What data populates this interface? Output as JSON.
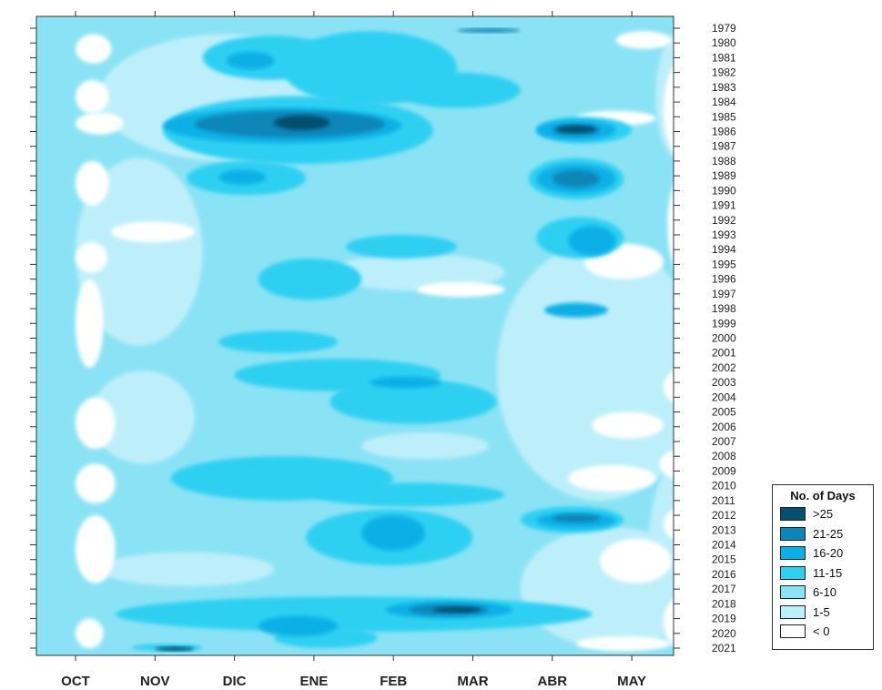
{
  "chart_data": {
    "type": "heatmap",
    "title": "",
    "xlabel": "",
    "ylabel": "",
    "months": [
      "OCT",
      "NOV",
      "DIC",
      "ENE",
      "FEB",
      "MAR",
      "ABR",
      "MAY"
    ],
    "years": [
      "1979",
      "1980",
      "1981",
      "1982",
      "1983",
      "1984",
      "1985",
      "1986",
      "1987",
      "1988",
      "1989",
      "1990",
      "1991",
      "1992",
      "1993",
      "1994",
      "1995",
      "1996",
      "1997",
      "1998",
      "1999",
      "2000",
      "2001",
      "2002",
      "2003",
      "2004",
      "2005",
      "2006",
      "2007",
      "2008",
      "2009",
      "2010",
      "2011",
      "2012",
      "2013",
      "2014",
      "2015",
      "2016",
      "2017",
      "2018",
      "2019",
      "2020",
      "2021"
    ],
    "legend": {
      "title": "No. of Days",
      "classes": [
        {
          "label": ">25",
          "color": "#04506e"
        },
        {
          "label": "21-25",
          "color": "#0a86b8"
        },
        {
          "label": "16-20",
          "color": "#08b0e6"
        },
        {
          "label": "11-15",
          "color": "#2fd0f2"
        },
        {
          "label": "6-10",
          "color": "#8ae3f4"
        },
        {
          "label": "1-5",
          "color": "#bdeffa"
        },
        {
          "label": "< 0",
          "color": "#ffffff"
        }
      ]
    },
    "background_class": "6-10",
    "regions": [
      {
        "c": "1-5",
        "m": [
          0.3,
          3.5
        ],
        "y": [
          1979.4,
          1988.0
        ]
      },
      {
        "c": "1-5",
        "m": [
          0.0,
          1.6
        ],
        "y": [
          1987.8,
          2000.5
        ]
      },
      {
        "c": "1-5",
        "m": [
          0.2,
          1.5
        ],
        "y": [
          2002.2,
          2008.5
        ]
      },
      {
        "c": "1-5",
        "m": [
          5.3,
          7.9
        ],
        "y": [
          1993.5,
          2011.0
        ]
      },
      {
        "c": "1-5",
        "m": [
          5.6,
          7.9
        ],
        "y": [
          2012.8,
          2021.0
        ]
      },
      {
        "c": "1-5",
        "m": [
          3.2,
          5.4
        ],
        "y": [
          1994.3,
          1996.8
        ]
      },
      {
        "c": "1-5",
        "m": [
          0.3,
          2.5
        ],
        "y": [
          2014.5,
          2016.8
        ]
      },
      {
        "c": "1-5",
        "m": [
          3.6,
          5.2
        ],
        "y": [
          2006.4,
          2008.2
        ]
      },
      {
        "c": "1-5",
        "m": [
          7.3,
          7.95
        ],
        "y": [
          1979.2,
          1988.0
        ]
      },
      {
        "c": "1-5",
        "m": [
          7.2,
          7.95
        ],
        "y": [
          2008.5,
          2021.0
        ]
      },
      {
        "c": "< 0",
        "m": [
          0.0,
          0.45
        ],
        "y": [
          1979.4,
          1981.4
        ]
      },
      {
        "c": "< 0",
        "m": [
          0.0,
          0.42
        ],
        "y": [
          1982.5,
          1984.8
        ]
      },
      {
        "c": "< 0",
        "m": [
          0.0,
          0.6
        ],
        "y": [
          1984.7,
          1986.2
        ]
      },
      {
        "c": "< 0",
        "m": [
          0.0,
          0.42
        ],
        "y": [
          1988.0,
          1991.0
        ]
      },
      {
        "c": "< 0",
        "m": [
          0.45,
          1.5
        ],
        "y": [
          1992.1,
          1993.5
        ]
      },
      {
        "c": "< 0",
        "m": [
          0.0,
          0.4
        ],
        "y": [
          1993.5,
          1995.6
        ]
      },
      {
        "c": "< 0",
        "m": [
          0.0,
          0.35
        ],
        "y": [
          1996.0,
          2002.0
        ]
      },
      {
        "c": "< 0",
        "m": [
          0.0,
          0.5
        ],
        "y": [
          2004.0,
          2007.5
        ]
      },
      {
        "c": "< 0",
        "m": [
          0.0,
          0.5
        ],
        "y": [
          2008.5,
          2011.2
        ]
      },
      {
        "c": "< 0",
        "m": [
          0.0,
          0.5
        ],
        "y": [
          2012.0,
          2016.6
        ]
      },
      {
        "c": "< 0",
        "m": [
          0.0,
          0.35
        ],
        "y": [
          2019.0,
          2021.0
        ]
      },
      {
        "c": "< 0",
        "m": [
          7.4,
          7.95
        ],
        "y": [
          1981.0,
          1988.0
        ]
      },
      {
        "c": "< 0",
        "m": [
          7.45,
          7.95
        ],
        "y": [
          1988.5,
          1996.2
        ]
      },
      {
        "c": "< 0",
        "m": [
          7.4,
          7.95
        ],
        "y": [
          2002.0,
          2004.6
        ]
      },
      {
        "c": "< 0",
        "m": [
          7.35,
          7.95
        ],
        "y": [
          2007.5,
          2009.6
        ]
      },
      {
        "c": "< 0",
        "m": [
          7.4,
          7.95
        ],
        "y": [
          2011.4,
          2013.8
        ]
      },
      {
        "c": "< 0",
        "m": [
          7.4,
          7.95
        ],
        "y": [
          2017.4,
          2021.0
        ]
      },
      {
        "c": "< 0",
        "m": [
          6.8,
          7.5
        ],
        "y": [
          1979.2,
          1980.4
        ]
      },
      {
        "c": "< 0",
        "m": [
          6.3,
          7.3
        ],
        "y": [
          1984.6,
          1985.6
        ]
      },
      {
        "c": "< 0",
        "m": [
          6.4,
          7.4
        ],
        "y": [
          1993.6,
          1996.0
        ]
      },
      {
        "c": "< 0",
        "m": [
          6.5,
          7.4
        ],
        "y": [
          2005.0,
          2006.8
        ]
      },
      {
        "c": "< 0",
        "m": [
          6.6,
          7.5
        ],
        "y": [
          2013.6,
          2016.6
        ]
      },
      {
        "c": "< 0",
        "m": [
          4.3,
          5.4
        ],
        "y": [
          1996.2,
          1997.2
        ]
      },
      {
        "c": "< 0",
        "m": [
          6.2,
          7.3
        ],
        "y": [
          2008.6,
          2010.4
        ]
      },
      {
        "c": "< 0",
        "m": [
          6.3,
          7.5
        ],
        "y": [
          2020.2,
          2021.2
        ]
      },
      {
        "c": "11-15",
        "m": [
          1.6,
          3.3
        ],
        "y": [
          1979.5,
          1982.5
        ]
      },
      {
        "c": "11-15",
        "m": [
          2.6,
          4.8
        ],
        "y": [
          1979.2,
          1984.2
        ]
      },
      {
        "c": "11-15",
        "m": [
          1.1,
          4.5
        ],
        "y": [
          1983.6,
          1988.2
        ]
      },
      {
        "c": "11-15",
        "m": [
          4.0,
          5.6
        ],
        "y": [
          1982.0,
          1984.4
        ]
      },
      {
        "c": "11-15",
        "m": [
          5.8,
          7.0
        ],
        "y": [
          1985.0,
          1986.8
        ]
      },
      {
        "c": "11-15",
        "m": [
          5.7,
          6.9
        ],
        "y": [
          1987.8,
          1990.6
        ]
      },
      {
        "c": "11-15",
        "m": [
          5.8,
          6.9
        ],
        "y": [
          1991.8,
          1994.6
        ]
      },
      {
        "c": "11-15",
        "m": [
          1.4,
          2.9
        ],
        "y": [
          1988.0,
          1990.3
        ]
      },
      {
        "c": "11-15",
        "m": [
          2.3,
          3.6
        ],
        "y": [
          1994.6,
          1997.4
        ]
      },
      {
        "c": "11-15",
        "m": [
          3.4,
          4.8
        ],
        "y": [
          1993.0,
          1994.6
        ]
      },
      {
        "c": "11-15",
        "m": [
          1.8,
          3.3
        ],
        "y": [
          1999.5,
          2001.0
        ]
      },
      {
        "c": "11-15",
        "m": [
          2.0,
          4.6
        ],
        "y": [
          2001.4,
          2003.6
        ]
      },
      {
        "c": "11-15",
        "m": [
          3.2,
          5.3
        ],
        "y": [
          2002.8,
          2005.8
        ]
      },
      {
        "c": "11-15",
        "m": [
          1.2,
          4.0
        ],
        "y": [
          2008.0,
          2011.0
        ]
      },
      {
        "c": "11-15",
        "m": [
          3.0,
          5.4
        ],
        "y": [
          2009.8,
          2011.4
        ]
      },
      {
        "c": "11-15",
        "m": [
          2.9,
          5.0
        ],
        "y": [
          2011.6,
          2015.4
        ]
      },
      {
        "c": "11-15",
        "m": [
          5.6,
          6.9
        ],
        "y": [
          2011.4,
          2013.2
        ]
      },
      {
        "c": "11-15",
        "m": [
          0.5,
          6.5
        ],
        "y": [
          2017.5,
          2019.9
        ]
      },
      {
        "c": "11-15",
        "m": [
          2.5,
          3.8
        ],
        "y": [
          2019.6,
          2021.0
        ]
      },
      {
        "c": "11-15",
        "m": [
          0.7,
          1.6
        ],
        "y": [
          2020.7,
          2021.2
        ]
      },
      {
        "c": "16-20",
        "m": [
          1.9,
          2.5
        ],
        "y": [
          1980.6,
          1981.8
        ]
      },
      {
        "c": "16-20",
        "m": [
          1.1,
          4.1
        ],
        "y": [
          1984.4,
          1986.8
        ]
      },
      {
        "c": "16-20",
        "m": [
          5.8,
          6.8
        ],
        "y": [
          1985.2,
          1986.6
        ]
      },
      {
        "c": "16-20",
        "m": [
          5.8,
          6.8
        ],
        "y": [
          1988.2,
          1990.2
        ]
      },
      {
        "c": "16-20",
        "m": [
          6.2,
          6.8
        ],
        "y": [
          1992.4,
          1994.4
        ]
      },
      {
        "c": "16-20",
        "m": [
          1.8,
          2.4
        ],
        "y": [
          1988.6,
          1989.6
        ]
      },
      {
        "c": "16-20",
        "m": [
          5.9,
          6.7
        ],
        "y": [
          1997.6,
          1998.6
        ]
      },
      {
        "c": "16-20",
        "m": [
          3.7,
          4.6
        ],
        "y": [
          2002.6,
          2003.4
        ]
      },
      {
        "c": "16-20",
        "m": [
          3.6,
          4.4
        ],
        "y": [
          2012.0,
          2014.4
        ]
      },
      {
        "c": "16-20",
        "m": [
          5.8,
          6.8
        ],
        "y": [
          2011.8,
          2012.9
        ]
      },
      {
        "c": "16-20",
        "m": [
          3.9,
          5.5
        ],
        "y": [
          2017.8,
          2019.0
        ]
      },
      {
        "c": "16-20",
        "m": [
          2.3,
          3.3
        ],
        "y": [
          2018.8,
          2020.2
        ]
      },
      {
        "c": "21-25",
        "m": [
          1.5,
          3.9
        ],
        "y": [
          1984.6,
          1986.4
        ]
      },
      {
        "c": "21-25",
        "m": [
          6.0,
          6.6
        ],
        "y": [
          1985.5,
          1986.3
        ]
      },
      {
        "c": "21-25",
        "m": [
          6.0,
          6.6
        ],
        "y": [
          1988.6,
          1989.8
        ]
      },
      {
        "c": "21-25",
        "m": [
          4.2,
          5.2
        ],
        "y": [
          2018.0,
          2018.8
        ]
      },
      {
        "c": "21-25",
        "m": [
          6.0,
          6.6
        ],
        "y": [
          2011.9,
          2012.5
        ]
      },
      {
        "c": "21-25",
        "m": [
          4.8,
          5.6
        ],
        "y": [
          1979.0,
          1979.3
        ]
      },
      {
        "c": ">25",
        "m": [
          2.5,
          3.2
        ],
        "y": [
          1984.9,
          1985.9
        ]
      },
      {
        "c": ">25",
        "m": [
          6.05,
          6.55
        ],
        "y": [
          1985.6,
          1986.1
        ]
      },
      {
        "c": ">25",
        "m": [
          4.5,
          5.1
        ],
        "y": [
          2018.2,
          2018.6
        ]
      },
      {
        "c": ">25",
        "m": [
          1.0,
          1.5
        ],
        "y": [
          2020.9,
          2021.2
        ]
      }
    ]
  }
}
